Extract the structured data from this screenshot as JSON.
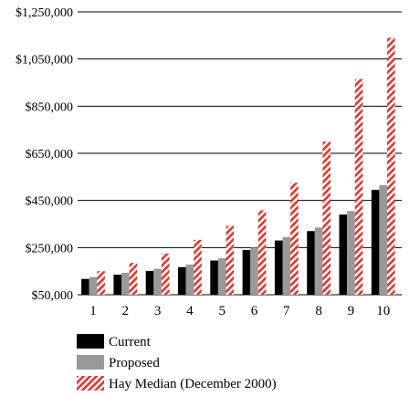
{
  "chart_data": {
    "type": "bar",
    "categories": [
      "1",
      "2",
      "3",
      "4",
      "5",
      "6",
      "7",
      "8",
      "9",
      "10"
    ],
    "series": [
      {
        "name": "Current",
        "color": "#000000",
        "pattern": "solid",
        "values": [
          117000,
          135000,
          151000,
          167000,
          195000,
          240000,
          280000,
          320000,
          390000,
          495000
        ]
      },
      {
        "name": "Proposed",
        "color": "#999999",
        "pattern": "solid",
        "values": [
          125000,
          143000,
          160000,
          178000,
          205000,
          250000,
          295000,
          335000,
          405000,
          515000
        ]
      },
      {
        "name": "Hay Median (December 2000)",
        "color": "#e8342b",
        "pattern": "diagonal-stripes",
        "values": [
          150000,
          185000,
          225000,
          283000,
          342000,
          408000,
          525000,
          700000,
          965000,
          1140000
        ]
      }
    ],
    "yticks": [
      "$50,000",
      "$250,000",
      "$450,000",
      "$650,000",
      "$850,000",
      "$1,050,000",
      "$1,250,000"
    ],
    "ylim": [
      50000,
      1250000
    ],
    "grid": true,
    "legend": "bottom",
    "title": "",
    "xlabel": "",
    "ylabel": ""
  }
}
